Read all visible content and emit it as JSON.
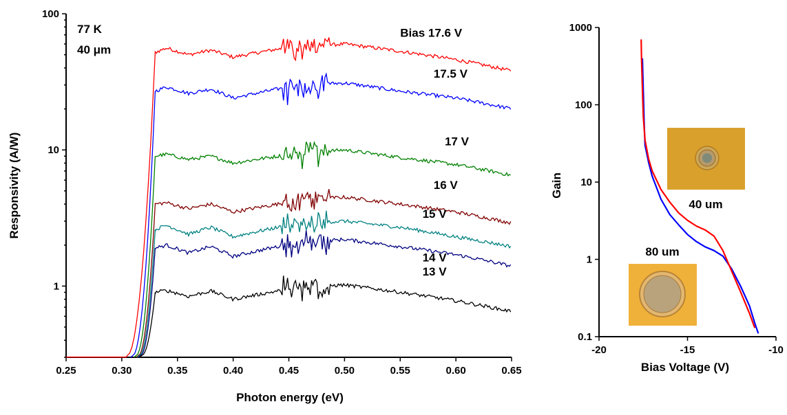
{
  "chart_data": [
    {
      "type": "line",
      "xlabel": "Photon energy (eV)",
      "ylabel": "Responsivity (A/W)",
      "xlim": [
        0.25,
        0.65
      ],
      "ylim": [
        0.3,
        100
      ],
      "yscale": "log",
      "grid": false,
      "xticks": [
        "0.25",
        "0.30",
        "0.35",
        "0.40",
        "0.45",
        "0.50",
        "0.55",
        "0.60",
        "0.65"
      ],
      "yticks": [
        "1",
        "10",
        "100"
      ],
      "annotations": [
        "77 K",
        "40 μm"
      ],
      "series": [
        {
          "name": "Bias 17.6 V",
          "color": "#ff0000",
          "onset": 0.305,
          "x": [
            0.33,
            0.34,
            0.36,
            0.38,
            0.4,
            0.44,
            0.46,
            0.5,
            0.55,
            0.6,
            0.65
          ],
          "y": [
            52,
            56,
            50,
            54,
            48,
            55,
            57,
            60,
            53,
            46,
            38
          ]
        },
        {
          "name": "17.5 V",
          "color": "#0000ff",
          "onset": 0.31,
          "x": [
            0.33,
            0.34,
            0.36,
            0.38,
            0.4,
            0.44,
            0.46,
            0.5,
            0.55,
            0.6,
            0.65
          ],
          "y": [
            27,
            29,
            26,
            28,
            24,
            28,
            30,
            31,
            27,
            24,
            20
          ]
        },
        {
          "name": "17 V",
          "color": "#008000",
          "onset": 0.313,
          "x": [
            0.33,
            0.34,
            0.36,
            0.38,
            0.4,
            0.44,
            0.46,
            0.5,
            0.55,
            0.6,
            0.65
          ],
          "y": [
            9,
            9.3,
            8.5,
            9,
            8,
            9,
            9.5,
            10,
            8.8,
            7.8,
            6.5
          ]
        },
        {
          "name": "16 V",
          "color": "#800000",
          "onset": 0.315,
          "x": [
            0.33,
            0.34,
            0.36,
            0.38,
            0.4,
            0.44,
            0.46,
            0.5,
            0.55,
            0.6,
            0.65
          ],
          "y": [
            4,
            4.1,
            3.7,
            4,
            3.5,
            4,
            4.3,
            4.5,
            4,
            3.5,
            2.9
          ]
        },
        {
          "name": "15 V",
          "color": "#008080",
          "onset": 0.316,
          "x": [
            0.33,
            0.34,
            0.36,
            0.38,
            0.4,
            0.44,
            0.46,
            0.5,
            0.55,
            0.6,
            0.65
          ],
          "y": [
            2.6,
            2.8,
            2.4,
            2.7,
            2.3,
            2.7,
            2.9,
            3,
            2.7,
            2.3,
            1.95
          ]
        },
        {
          "name": "14 V",
          "color": "#000080",
          "onset": 0.317,
          "x": [
            0.33,
            0.34,
            0.36,
            0.38,
            0.4,
            0.44,
            0.46,
            0.5,
            0.55,
            0.6,
            0.65
          ],
          "y": [
            1.9,
            2,
            1.75,
            1.95,
            1.65,
            1.95,
            2.1,
            2.2,
            1.95,
            1.7,
            1.4
          ]
        },
        {
          "name": "13 V",
          "color": "#000000",
          "onset": 0.318,
          "x": [
            0.33,
            0.34,
            0.36,
            0.38,
            0.4,
            0.44,
            0.46,
            0.5,
            0.55,
            0.6,
            0.65
          ],
          "y": [
            0.9,
            0.93,
            0.84,
            0.92,
            0.8,
            0.92,
            0.98,
            1.02,
            0.9,
            0.78,
            0.65
          ]
        }
      ]
    },
    {
      "type": "line",
      "xlabel": "Bias Voltage (V)",
      "ylabel": "Gain",
      "xlim": [
        -20,
        -10
      ],
      "ylim": [
        0.1,
        1000
      ],
      "yscale": "log",
      "grid": false,
      "xticks": [
        "-20",
        "-15",
        "-10"
      ],
      "yticks": [
        "0.1",
        "1",
        "10",
        "100",
        "1000"
      ],
      "annotations": [
        "40 um",
        "80 um"
      ],
      "series": [
        {
          "name": "40 um",
          "color": "#ff0000",
          "x": [
            -17.62,
            -17.6,
            -17.55,
            -17.5,
            -17.4,
            -17.2,
            -17.0,
            -16.5,
            -16.0,
            -15.5,
            -15.0,
            -14.5,
            -14.0,
            -13.5,
            -13.0,
            -12.5,
            -12.0,
            -11.5,
            -11.2
          ],
          "y": [
            700,
            400,
            160,
            70,
            35,
            20,
            14,
            8,
            5.5,
            4,
            3.2,
            2.7,
            2.4,
            2.0,
            1.3,
            0.7,
            0.38,
            0.2,
            0.13
          ]
        },
        {
          "name": "80 um",
          "color": "#0000ff",
          "x": [
            -17.55,
            -17.5,
            -17.45,
            -17.4,
            -17.2,
            -17.0,
            -16.5,
            -16.0,
            -15.5,
            -15.0,
            -14.5,
            -14.0,
            -13.5,
            -13.0,
            -12.5,
            -12.0,
            -11.5,
            -11.2,
            -11.0
          ],
          "y": [
            400,
            150,
            60,
            30,
            18,
            12,
            6,
            3.8,
            2.8,
            2.1,
            1.7,
            1.45,
            1.3,
            1.1,
            0.75,
            0.45,
            0.25,
            0.15,
            0.11
          ]
        }
      ]
    }
  ]
}
